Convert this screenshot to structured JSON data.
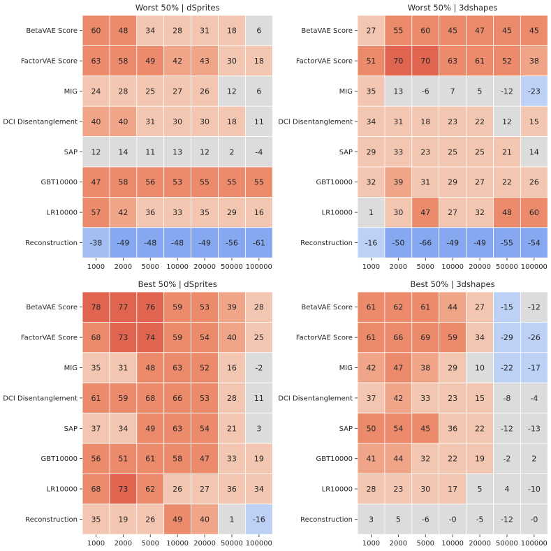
{
  "figure": {
    "background": "#ffffff"
  },
  "colors": {
    "neutral": "#dcdcdc",
    "pos_light": "#f2c6b0",
    "pos_mid": "#f1a588",
    "pos_strong": "#ec8a6c",
    "pos_dark": "#e06550",
    "neg_light": "#bcd1f5",
    "neg_mid": "#a3bff2",
    "neg_strong": "#86a8f0",
    "grid_line": "#ffffff"
  },
  "chart_data": [
    {
      "type": "heatmap",
      "title": "Worst 50% | dSprites",
      "xlabel": "",
      "ylabel": "",
      "x_categories": [
        "1000",
        "2000",
        "5000",
        "10000",
        "20000",
        "50000",
        "100000"
      ],
      "y_categories": [
        "BetaVAE Score",
        "FactorVAE Score",
        "MIG",
        "DCI Disentanglement",
        "SAP",
        "GBT10000",
        "LR10000",
        "Reconstruction"
      ],
      "values": [
        [
          60,
          48,
          34,
          28,
          31,
          18,
          6
        ],
        [
          63,
          58,
          49,
          42,
          43,
          30,
          18
        ],
        [
          24,
          28,
          25,
          27,
          26,
          12,
          6
        ],
        [
          40,
          40,
          31,
          30,
          30,
          18,
          11
        ],
        [
          12,
          14,
          11,
          13,
          12,
          2,
          -4
        ],
        [
          47,
          58,
          56,
          53,
          55,
          55,
          55
        ],
        [
          57,
          42,
          36,
          33,
          35,
          29,
          16
        ],
        [
          -38,
          -49,
          -48,
          -48,
          -49,
          -56,
          -61
        ]
      ],
      "labels": [
        [
          "60",
          "48",
          "34",
          "28",
          "31",
          "18",
          "6"
        ],
        [
          "63",
          "58",
          "49",
          "42",
          "43",
          "30",
          "18"
        ],
        [
          "24",
          "28",
          "25",
          "27",
          "26",
          "12",
          "6"
        ],
        [
          "40",
          "40",
          "31",
          "30",
          "30",
          "18",
          "11"
        ],
        [
          "12",
          "14",
          "11",
          "13",
          "12",
          "2",
          "-4"
        ],
        [
          "47",
          "58",
          "56",
          "53",
          "55",
          "55",
          "55"
        ],
        [
          "57",
          "42",
          "36",
          "33",
          "35",
          "29",
          "16"
        ],
        [
          "-38",
          "-49",
          "-48",
          "-48",
          "-49",
          "-56",
          "-61"
        ]
      ]
    },
    {
      "type": "heatmap",
      "title": "Worst 50% | 3dshapes",
      "xlabel": "",
      "ylabel": "",
      "x_categories": [
        "1000",
        "2000",
        "5000",
        "10000",
        "20000",
        "50000",
        "100000"
      ],
      "y_categories": [
        "BetaVAE Score",
        "FactorVAE Score",
        "MIG",
        "DCI Disentanglement",
        "SAP",
        "GBT10000",
        "LR10000",
        "Reconstruction"
      ],
      "values": [
        [
          27,
          55,
          60,
          45,
          47,
          45,
          45
        ],
        [
          51,
          70,
          70,
          63,
          61,
          52,
          38
        ],
        [
          35,
          13,
          -6,
          7,
          5,
          -12,
          -23
        ],
        [
          34,
          31,
          18,
          23,
          22,
          12,
          15
        ],
        [
          29,
          33,
          23,
          25,
          25,
          21,
          14
        ],
        [
          32,
          39,
          31,
          29,
          27,
          22,
          26
        ],
        [
          1,
          30,
          47,
          27,
          32,
          48,
          60
        ],
        [
          -16,
          -50,
          -66,
          -49,
          -49,
          -55,
          -54
        ]
      ],
      "labels": [
        [
          "27",
          "55",
          "60",
          "45",
          "47",
          "45",
          "45"
        ],
        [
          "51",
          "70",
          "70",
          "63",
          "61",
          "52",
          "38"
        ],
        [
          "35",
          "13",
          "-6",
          "7",
          "5",
          "-12",
          "-23"
        ],
        [
          "34",
          "31",
          "18",
          "23",
          "22",
          "12",
          "15"
        ],
        [
          "29",
          "33",
          "23",
          "25",
          "25",
          "21",
          "14"
        ],
        [
          "32",
          "39",
          "31",
          "29",
          "27",
          "22",
          "26"
        ],
        [
          "1",
          "30",
          "47",
          "27",
          "32",
          "48",
          "60"
        ],
        [
          "-16",
          "-50",
          "-66",
          "-49",
          "-49",
          "-55",
          "-54"
        ]
      ]
    },
    {
      "type": "heatmap",
      "title": "Best 50% | dSprites",
      "xlabel": "",
      "ylabel": "",
      "x_categories": [
        "1000",
        "2000",
        "5000",
        "10000",
        "20000",
        "50000",
        "100000"
      ],
      "y_categories": [
        "BetaVAE Score",
        "FactorVAE Score",
        "MIG",
        "DCI Disentanglement",
        "SAP",
        "GBT10000",
        "LR10000",
        "Reconstruction"
      ],
      "values": [
        [
          78,
          77,
          76,
          59,
          53,
          39,
          28
        ],
        [
          68,
          73,
          74,
          59,
          54,
          40,
          25
        ],
        [
          35,
          31,
          48,
          63,
          52,
          16,
          -2
        ],
        [
          61,
          59,
          68,
          66,
          53,
          28,
          11
        ],
        [
          37,
          34,
          49,
          63,
          54,
          21,
          3
        ],
        [
          56,
          51,
          61,
          58,
          47,
          33,
          19
        ],
        [
          68,
          73,
          62,
          26,
          27,
          36,
          34
        ],
        [
          35,
          19,
          26,
          49,
          40,
          1,
          -16
        ]
      ],
      "labels": [
        [
          "78",
          "77",
          "76",
          "59",
          "53",
          "39",
          "28"
        ],
        [
          "68",
          "73",
          "74",
          "59",
          "54",
          "40",
          "25"
        ],
        [
          "35",
          "31",
          "48",
          "63",
          "52",
          "16",
          "-2"
        ],
        [
          "61",
          "59",
          "68",
          "66",
          "53",
          "28",
          "11"
        ],
        [
          "37",
          "34",
          "49",
          "63",
          "54",
          "21",
          "3"
        ],
        [
          "56",
          "51",
          "61",
          "58",
          "47",
          "33",
          "19"
        ],
        [
          "68",
          "73",
          "62",
          "26",
          "27",
          "36",
          "34"
        ],
        [
          "35",
          "19",
          "26",
          "49",
          "40",
          "1",
          "-16"
        ]
      ]
    },
    {
      "type": "heatmap",
      "title": "Best 50% | 3dshapes",
      "xlabel": "",
      "ylabel": "",
      "x_categories": [
        "1000",
        "2000",
        "5000",
        "10000",
        "20000",
        "50000",
        "100000"
      ],
      "y_categories": [
        "BetaVAE Score",
        "FactorVAE Score",
        "MIG",
        "DCI Disentanglement",
        "SAP",
        "GBT10000",
        "LR10000",
        "Reconstruction"
      ],
      "values": [
        [
          61,
          62,
          61,
          44,
          27,
          -15,
          -12
        ],
        [
          61,
          66,
          69,
          59,
          34,
          -29,
          -26
        ],
        [
          42,
          47,
          38,
          29,
          10,
          -22,
          -17
        ],
        [
          37,
          42,
          33,
          23,
          15,
          -8,
          -4
        ],
        [
          50,
          54,
          45,
          36,
          22,
          -12,
          -13
        ],
        [
          41,
          44,
          32,
          22,
          19,
          -2,
          2
        ],
        [
          28,
          23,
          30,
          17,
          5,
          4,
          -10
        ],
        [
          3,
          5,
          -6,
          0,
          -5,
          -12,
          0
        ]
      ],
      "labels": [
        [
          "61",
          "62",
          "61",
          "44",
          "27",
          "-15",
          "-12"
        ],
        [
          "61",
          "66",
          "69",
          "59",
          "34",
          "-29",
          "-26"
        ],
        [
          "42",
          "47",
          "38",
          "29",
          "10",
          "-22",
          "-17"
        ],
        [
          "37",
          "42",
          "33",
          "23",
          "15",
          "-8",
          "-4"
        ],
        [
          "50",
          "54",
          "45",
          "36",
          "22",
          "-12",
          "-13"
        ],
        [
          "41",
          "44",
          "32",
          "22",
          "19",
          "-2",
          "2"
        ],
        [
          "28",
          "23",
          "30",
          "17",
          "5",
          "4",
          "-10"
        ],
        [
          "3",
          "5",
          "-6",
          "-0",
          "-5",
          "-12",
          "-0"
        ]
      ]
    }
  ]
}
